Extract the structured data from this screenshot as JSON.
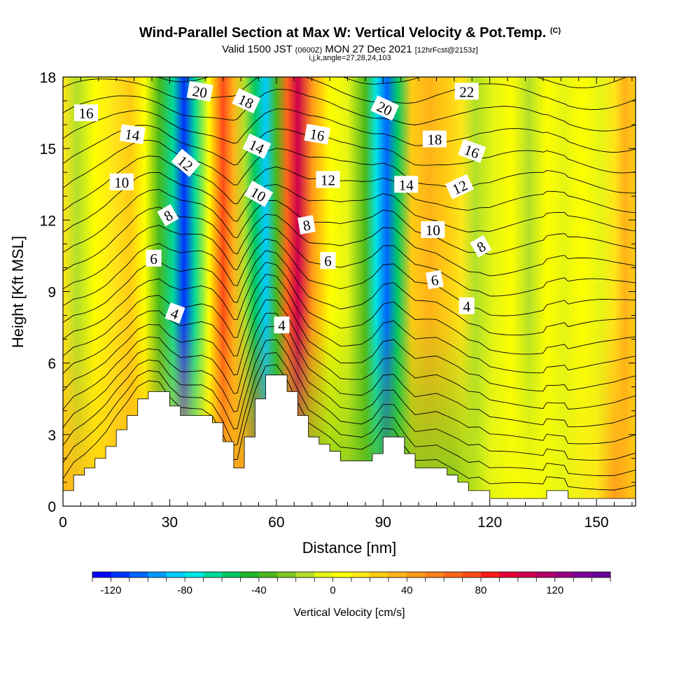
{
  "title": {
    "main": "Wind-Parallel Section at Max W: Vertical Velocity & Pot.Temp.",
    "copyright": "(C)",
    "valid_prefix": "Valid 1500 JST",
    "utc": "(0600Z)",
    "valid_date": "MON 27 Dec 2021",
    "forecast": "[12hrFcst@2153z]",
    "params": "i,j,k,angle=27,28,24,103"
  },
  "chart_data": {
    "type": "heatmap",
    "xlabel": "Distance [nm]",
    "ylabel": "Height [Kft MSL]",
    "xlim": [
      0,
      161
    ],
    "ylim": [
      0,
      18
    ],
    "xticks": [
      0,
      30,
      60,
      90,
      120,
      150
    ],
    "yticks": [
      0,
      3,
      6,
      9,
      12,
      15,
      18
    ],
    "colorbar": {
      "label": "Vertical Velocity [cm/s]",
      "range": [
        -130,
        150
      ],
      "step": 10,
      "tick_values": [
        -120,
        -80,
        -40,
        0,
        40,
        80,
        120
      ],
      "colors": [
        "#0000ff",
        "#0033ff",
        "#0066ff",
        "#0099ff",
        "#00ccff",
        "#00e5e5",
        "#00d89a",
        "#00c864",
        "#22b828",
        "#4cb81c",
        "#7fc81e",
        "#b2e02a",
        "#e5f514",
        "#ffff00",
        "#ffe619",
        "#ffcc14",
        "#ffb319",
        "#ff9919",
        "#ff7f19",
        "#ff6619",
        "#ff4c19",
        "#ff1919",
        "#e60033",
        "#cc004c",
        "#b3006a",
        "#990080",
        "#7f0099",
        "#66009a"
      ]
    },
    "velocity_bands": [
      {
        "x": 0,
        "v": 12
      },
      {
        "x": 4,
        "v": -15
      },
      {
        "x": 9,
        "v": 5
      },
      {
        "x": 14,
        "v": 15
      },
      {
        "x": 19,
        "v": 25
      },
      {
        "x": 23,
        "v": 5
      },
      {
        "x": 27,
        "v": -35
      },
      {
        "x": 31,
        "v": -70
      },
      {
        "x": 34,
        "v": -115
      },
      {
        "x": 37,
        "v": -70
      },
      {
        "x": 41,
        "v": 5
      },
      {
        "x": 45,
        "v": 75
      },
      {
        "x": 48,
        "v": 35
      },
      {
        "x": 51,
        "v": -15
      },
      {
        "x": 54,
        "v": -60
      },
      {
        "x": 57,
        "v": -90
      },
      {
        "x": 60,
        "v": -40
      },
      {
        "x": 63,
        "v": 60
      },
      {
        "x": 66,
        "v": 105
      },
      {
        "x": 70,
        "v": 40
      },
      {
        "x": 75,
        "v": 5
      },
      {
        "x": 80,
        "v": -10
      },
      {
        "x": 85,
        "v": -40
      },
      {
        "x": 88,
        "v": -75
      },
      {
        "x": 91,
        "v": -105
      },
      {
        "x": 94,
        "v": -55
      },
      {
        "x": 98,
        "v": 20
      },
      {
        "x": 103,
        "v": 35
      },
      {
        "x": 108,
        "v": 25
      },
      {
        "x": 112,
        "v": 10
      },
      {
        "x": 116,
        "v": -20
      },
      {
        "x": 121,
        "v": -5
      },
      {
        "x": 126,
        "v": 5
      },
      {
        "x": 131,
        "v": -15
      },
      {
        "x": 136,
        "v": 5
      },
      {
        "x": 141,
        "v": -10
      },
      {
        "x": 146,
        "v": 0
      },
      {
        "x": 151,
        "v": -5
      },
      {
        "x": 155,
        "v": 10
      },
      {
        "x": 158,
        "v": 35
      },
      {
        "x": 161,
        "v": 20
      }
    ],
    "low_level_velocity": [
      {
        "x": 0,
        "v": 30
      },
      {
        "x": 10,
        "v": 20
      },
      {
        "x": 20,
        "v": 35
      },
      {
        "x": 30,
        "v": 20
      },
      {
        "x": 40,
        "v": 10
      },
      {
        "x": 50,
        "v": 45
      },
      {
        "x": 55,
        "v": 60
      },
      {
        "x": 60,
        "v": -60
      },
      {
        "x": 65,
        "v": -20
      },
      {
        "x": 70,
        "v": -30
      },
      {
        "x": 80,
        "v": -30
      },
      {
        "x": 90,
        "v": -40
      },
      {
        "x": 100,
        "v": -30
      },
      {
        "x": 110,
        "v": -25
      },
      {
        "x": 120,
        "v": -10
      },
      {
        "x": 130,
        "v": 5
      },
      {
        "x": 140,
        "v": -10
      },
      {
        "x": 150,
        "v": 10
      },
      {
        "x": 155,
        "v": 40
      },
      {
        "x": 161,
        "v": 25
      }
    ],
    "terrain_profile": [
      {
        "x": 0,
        "h": 0.65
      },
      {
        "x": 3,
        "h": 1.3
      },
      {
        "x": 6,
        "h": 1.6
      },
      {
        "x": 9,
        "h": 2.0
      },
      {
        "x": 12,
        "h": 2.5
      },
      {
        "x": 15,
        "h": 3.2
      },
      {
        "x": 18,
        "h": 3.8
      },
      {
        "x": 21,
        "h": 4.5
      },
      {
        "x": 24,
        "h": 4.8
      },
      {
        "x": 27,
        "h": 4.8
      },
      {
        "x": 30,
        "h": 4.2
      },
      {
        "x": 33,
        "h": 3.8
      },
      {
        "x": 36,
        "h": 3.8
      },
      {
        "x": 39,
        "h": 3.8
      },
      {
        "x": 42,
        "h": 3.5
      },
      {
        "x": 45,
        "h": 2.7
      },
      {
        "x": 48,
        "h": 1.6
      },
      {
        "x": 49,
        "h": 1.6
      },
      {
        "x": 51,
        "h": 2.9
      },
      {
        "x": 54,
        "h": 4.5
      },
      {
        "x": 57,
        "h": 5.5
      },
      {
        "x": 60,
        "h": 5.5
      },
      {
        "x": 63,
        "h": 4.8
      },
      {
        "x": 66,
        "h": 3.8
      },
      {
        "x": 69,
        "h": 2.9
      },
      {
        "x": 72,
        "h": 2.6
      },
      {
        "x": 75,
        "h": 2.3
      },
      {
        "x": 78,
        "h": 1.9
      },
      {
        "x": 81,
        "h": 1.9
      },
      {
        "x": 84,
        "h": 1.9
      },
      {
        "x": 87,
        "h": 2.2
      },
      {
        "x": 90,
        "h": 2.9
      },
      {
        "x": 93,
        "h": 2.9
      },
      {
        "x": 96,
        "h": 2.2
      },
      {
        "x": 99,
        "h": 1.6
      },
      {
        "x": 102,
        "h": 1.6
      },
      {
        "x": 105,
        "h": 1.6
      },
      {
        "x": 108,
        "h": 1.3
      },
      {
        "x": 111,
        "h": 1.0
      },
      {
        "x": 114,
        "h": 0.65
      },
      {
        "x": 117,
        "h": 0.65
      },
      {
        "x": 120,
        "h": 0.32
      },
      {
        "x": 135,
        "h": 0.32
      },
      {
        "x": 136,
        "h": 0.65
      },
      {
        "x": 141,
        "h": 0.65
      },
      {
        "x": 142,
        "h": 0.32
      },
      {
        "x": 155,
        "h": 0.32
      },
      {
        "x": 161,
        "h": 0.5
      }
    ],
    "theta_contour_levels": [
      2,
      3,
      4,
      5,
      6,
      7,
      8,
      9,
      10,
      11,
      12,
      13,
      14,
      15,
      16,
      17,
      18,
      19,
      20,
      21,
      22,
      23,
      24,
      25
    ],
    "theta_contour_labels": [
      {
        "text": "16",
        "x": 6.5,
        "y": 16.5,
        "angle": 0
      },
      {
        "text": "14",
        "x": 19.5,
        "y": 15.6,
        "angle": 8
      },
      {
        "text": "10",
        "x": 16.5,
        "y": 13.6,
        "angle": 0
      },
      {
        "text": "8",
        "x": 29.5,
        "y": 12.2,
        "angle": -30
      },
      {
        "text": "6",
        "x": 25.5,
        "y": 10.4,
        "angle": 0
      },
      {
        "text": "4",
        "x": 31.5,
        "y": 8.1,
        "angle": 20
      },
      {
        "text": "20",
        "x": 38.5,
        "y": 17.4,
        "angle": 10
      },
      {
        "text": "12",
        "x": 34.5,
        "y": 14.4,
        "angle": 40
      },
      {
        "text": "18",
        "x": 51.5,
        "y": 17.0,
        "angle": 25
      },
      {
        "text": "14",
        "x": 54.5,
        "y": 15.1,
        "angle": 25
      },
      {
        "text": "10",
        "x": 55.0,
        "y": 13.1,
        "angle": 30
      },
      {
        "text": "8",
        "x": 68.5,
        "y": 11.8,
        "angle": -10
      },
      {
        "text": "6",
        "x": 74.5,
        "y": 10.3,
        "angle": 0
      },
      {
        "text": "4",
        "x": 61.5,
        "y": 7.6,
        "angle": 0
      },
      {
        "text": "16",
        "x": 71.5,
        "y": 15.6,
        "angle": 10
      },
      {
        "text": "12",
        "x": 74.5,
        "y": 13.7,
        "angle": 0
      },
      {
        "text": "20",
        "x": 90.5,
        "y": 16.7,
        "angle": 25
      },
      {
        "text": "14",
        "x": 96.5,
        "y": 13.5,
        "angle": 0
      },
      {
        "text": "18",
        "x": 104.5,
        "y": 15.4,
        "angle": 0
      },
      {
        "text": "16",
        "x": 115.0,
        "y": 14.9,
        "angle": 20
      },
      {
        "text": "12",
        "x": 111.5,
        "y": 13.4,
        "angle": -25
      },
      {
        "text": "10",
        "x": 104.0,
        "y": 11.6,
        "angle": 0
      },
      {
        "text": "8",
        "x": 117.5,
        "y": 10.9,
        "angle": -30
      },
      {
        "text": "6",
        "x": 104.5,
        "y": 9.5,
        "angle": -10
      },
      {
        "text": "4",
        "x": 113.5,
        "y": 8.4,
        "angle": 0
      },
      {
        "text": "22",
        "x": 113.5,
        "y": 17.4,
        "angle": 0
      }
    ]
  }
}
